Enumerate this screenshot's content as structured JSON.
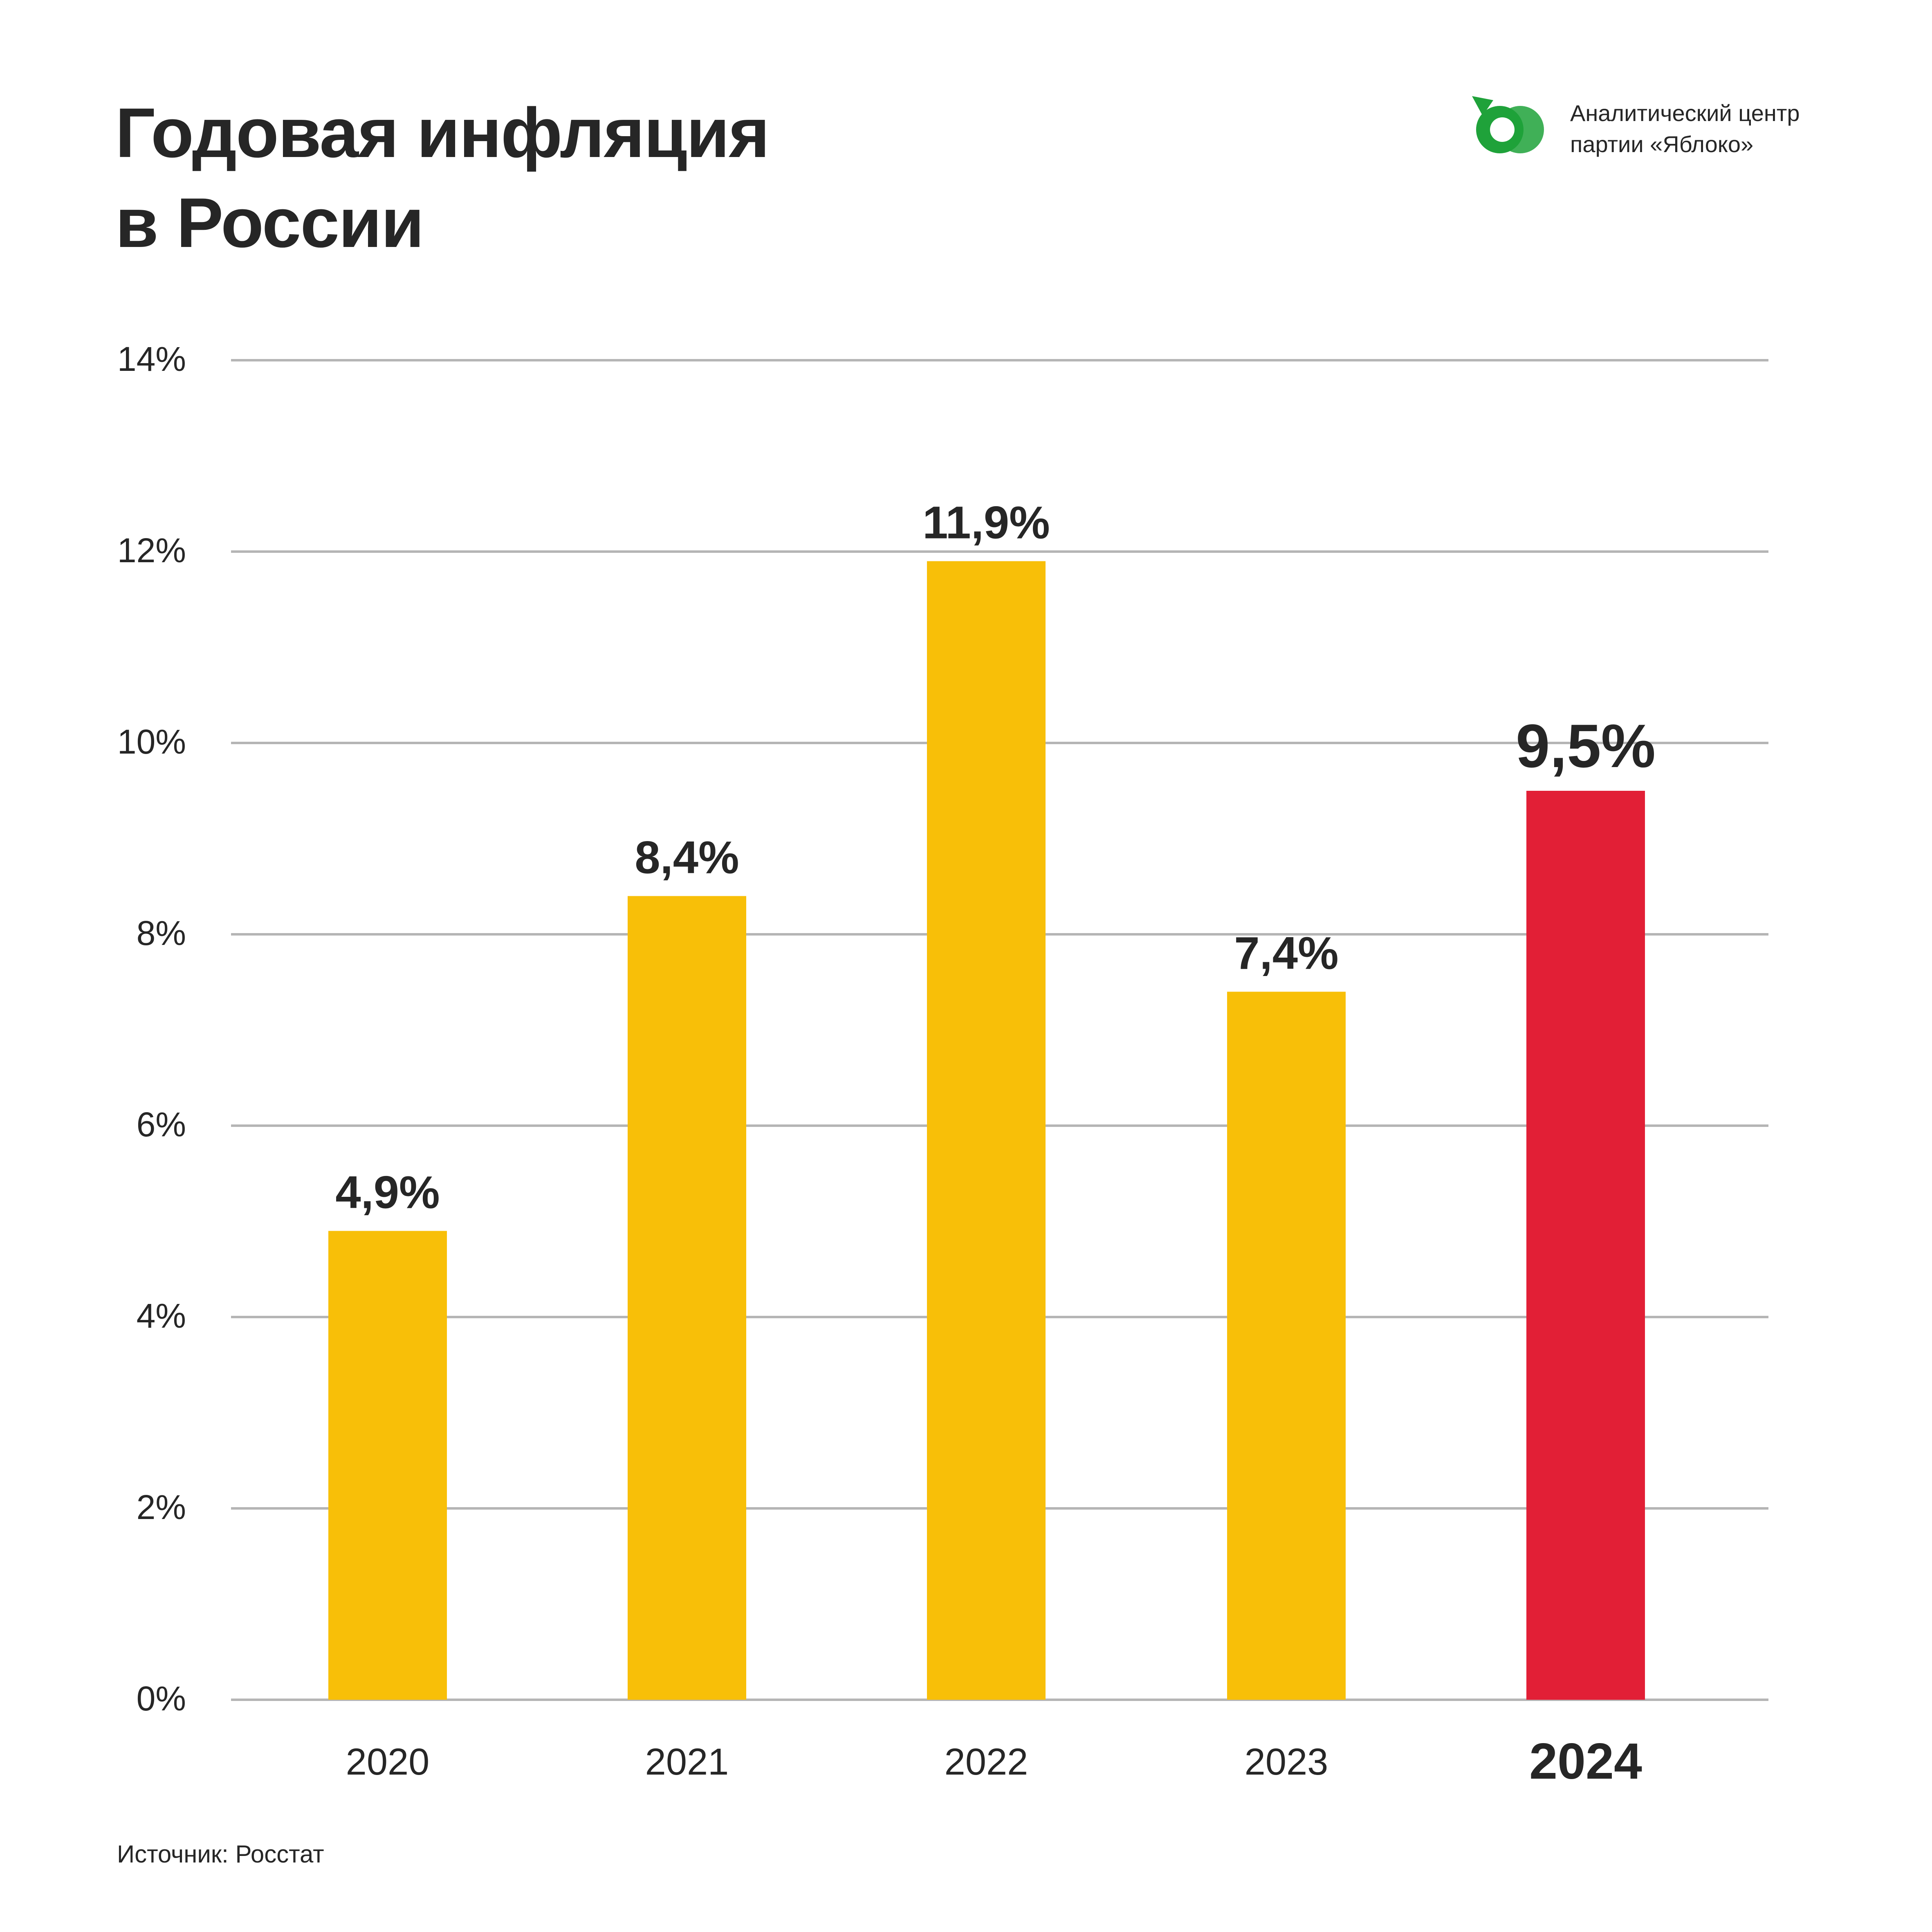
{
  "title": {
    "line1": "Годовая инфляция",
    "line2": "в России"
  },
  "logo": {
    "line1": "Аналитический центр",
    "line2": "партии «Яблоко»",
    "icon": "yabloko-apple-logo-icon",
    "color": "#1fa23a"
  },
  "source": "Источник: Росстат",
  "colors": {
    "bar": "#f8bf08",
    "highlight": "#e21f36",
    "grid": "#b5b5b5",
    "text": "#262626"
  },
  "chart_data": {
    "type": "bar",
    "categories": [
      "2020",
      "2021",
      "2022",
      "2023",
      "2024"
    ],
    "values": [
      4.9,
      8.4,
      11.9,
      7.4,
      9.5
    ],
    "data_labels": [
      "4,9%",
      "8,4%",
      "11,9%",
      "7,4%",
      "9,5%"
    ],
    "highlight_index": 4,
    "ylim": [
      0,
      14
    ],
    "yticks": [
      0,
      2,
      4,
      6,
      8,
      10,
      12,
      14
    ],
    "ytick_labels": [
      "0%",
      "2%",
      "4%",
      "6%",
      "8%",
      "10%",
      "12%",
      "14%"
    ],
    "grid": true,
    "xlabel": "",
    "ylabel": ""
  }
}
